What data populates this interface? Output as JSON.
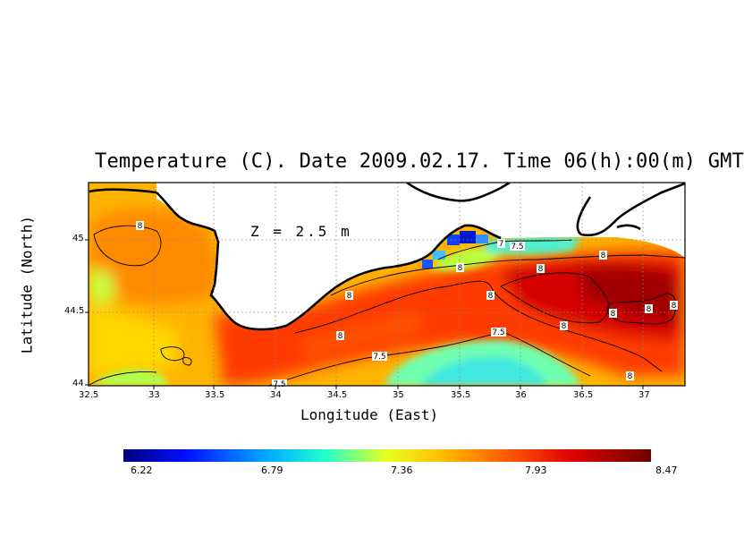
{
  "title": "Temperature (C). Date 2009.02.17. Time 06(h):00(m) GMT",
  "depth_label": "Z = 2.5 m",
  "x_axis": {
    "label": "Longitude (East)",
    "ticks": [
      "32.5",
      "33",
      "33.5",
      "34",
      "34.5",
      "35",
      "35.5",
      "36",
      "36.5",
      "37"
    ]
  },
  "y_axis": {
    "label": "Latitude (North)",
    "ticks": [
      "44",
      "44.5",
      "45"
    ]
  },
  "colorbar": {
    "ticks": [
      "6.22",
      "6.79",
      "7.36",
      "7.93",
      "8.47"
    ],
    "range": [
      6.22,
      8.47
    ]
  },
  "contours": [
    {
      "label": "8"
    },
    {
      "label": "7.5"
    },
    {
      "label": "7"
    }
  ],
  "map_extent": {
    "lon": [
      32.5,
      37.3
    ],
    "lat": [
      44,
      45.35
    ]
  },
  "colors": {
    "cold": "#000080",
    "cool": "#00ffff",
    "mid": "#ffff00",
    "warm": "#ff0000",
    "hot": "#800000"
  }
}
